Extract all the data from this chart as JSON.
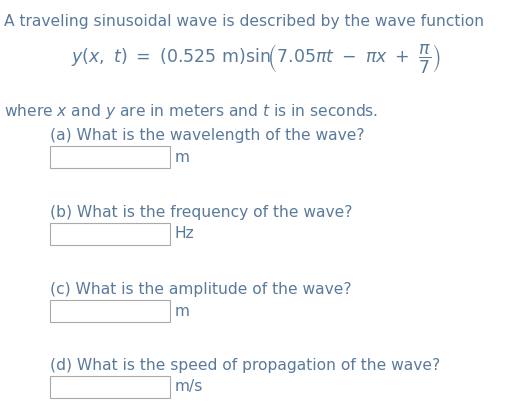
{
  "bg_color": "#ffffff",
  "text_color": "#5a7a9a",
  "title_line": "A traveling sinusoidal wave is described by the wave function",
  "where_line": "where $x$ and $y$ are in meters and $t$ is in seconds.",
  "questions": [
    "(a) What is the wavelength of the wave?",
    "(b) What is the frequency of the wave?",
    "(c) What is the amplitude of the wave?",
    "(d) What is the speed of propagation of the wave?"
  ],
  "units": [
    "m",
    "Hz",
    "m",
    "m/s"
  ],
  "title_fontsize": 11.2,
  "body_fontsize": 11.2,
  "eq_fontsize": 12.5
}
